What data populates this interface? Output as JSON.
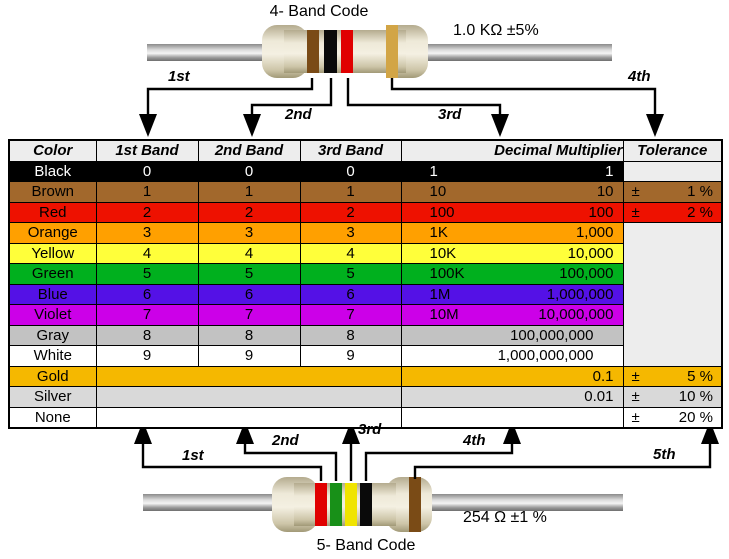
{
  "top_resistor": {
    "title": "4- Band Code",
    "spec": "1.0 KΩ  ±5%",
    "band_labels": [
      "1st",
      "2nd",
      "3rd",
      "4th"
    ],
    "band_colors": [
      "#7A4B16",
      "#0A0A0A",
      "#E00000",
      "#D2A546"
    ]
  },
  "bottom_resistor": {
    "title": "5- Band Code",
    "spec": "254 Ω  ±1 %",
    "band_labels": [
      "1st",
      "2nd",
      "3rd",
      "4th",
      "5th"
    ],
    "band_colors": [
      "#E00000",
      "#189018",
      "#F0E400",
      "#0A0A0A",
      "#7A4B16"
    ]
  },
  "table": {
    "headers": [
      "Color",
      "1st Band",
      "2nd Band",
      "3rd Band",
      "Decimal Multiplier",
      "Tolerance"
    ],
    "rows": [
      {
        "name": "Black",
        "bg": "#000000",
        "fg": "#FFFFFF",
        "bands": [
          "0",
          "0",
          "0"
        ],
        "mult_short": "1",
        "mult_full": "1",
        "pm": "",
        "tolerance": "",
        "tol_bg": "#EDEDED"
      },
      {
        "name": "Brown",
        "bg": "#A2682C",
        "fg": "#000000",
        "bands": [
          "1",
          "1",
          "1"
        ],
        "mult_short": "10",
        "mult_full": "10",
        "pm": "±",
        "tolerance": "1 %"
      },
      {
        "name": "Red",
        "bg": "#EE1100",
        "fg": "#000000",
        "bands": [
          "2",
          "2",
          "2"
        ],
        "mult_short": "100",
        "mult_full": "100",
        "pm": "±",
        "tolerance": "2 %"
      },
      {
        "name": "Orange",
        "bg": "#FFA000",
        "fg": "#000000",
        "bands": [
          "3",
          "3",
          "3"
        ],
        "mult_short": "1K",
        "mult_full": "1,000",
        "tol_merge_span": 7,
        "tol_bg": "#EDEDED"
      },
      {
        "name": "Yellow",
        "bg": "#FFFF3A",
        "fg": "#000000",
        "bands": [
          "4",
          "4",
          "4"
        ],
        "mult_short": "10K",
        "mult_full": "10,000",
        "tol_merged": true
      },
      {
        "name": "Green",
        "bg": "#00B01E",
        "fg": "#000000",
        "bands": [
          "5",
          "5",
          "5"
        ],
        "mult_short": "100K",
        "mult_full": "100,000",
        "tol_merged": true
      },
      {
        "name": "Blue",
        "bg": "#5411E6",
        "fg": "#000000",
        "bands": [
          "6",
          "6",
          "6"
        ],
        "mult_short": "1M",
        "mult_full": "1,000,000",
        "tol_merged": true
      },
      {
        "name": "Violet",
        "bg": "#CC00E8",
        "fg": "#000000",
        "bands": [
          "7",
          "7",
          "7"
        ],
        "mult_short": "10M",
        "mult_full": "10,000,000",
        "tol_merged": true
      },
      {
        "name": "Gray",
        "bg": "#C2C2C2",
        "fg": "#000000",
        "bands": [
          "8",
          "8",
          "8"
        ],
        "mult_short": "",
        "mult_full": "100,000,000",
        "mult_wide_pad": true,
        "tol_merged": true
      },
      {
        "name": "White",
        "bg": "#FFFFFF",
        "fg": "#000000",
        "bands": [
          "9",
          "9",
          "9"
        ],
        "mult_short": "",
        "mult_full": "1,000,000,000",
        "mult_wide_pad": true,
        "tol_merged": true
      },
      {
        "name": "Gold",
        "bg": "#F5B800",
        "fg": "#000000",
        "bands": null,
        "mult_short": "",
        "mult_full": "0.1",
        "pm": "±",
        "tolerance": "5 %"
      },
      {
        "name": "Silver",
        "bg": "#D9D9D9",
        "fg": "#000000",
        "bands": null,
        "mult_short": "",
        "mult_full": "0.01",
        "pm": "±",
        "tolerance": "10 %"
      },
      {
        "name": "None",
        "bg": "#FFFFFF",
        "fg": "#000000",
        "bands": null,
        "mult_short": "",
        "mult_full": "",
        "pm": "±",
        "tolerance": "20 %"
      }
    ]
  }
}
